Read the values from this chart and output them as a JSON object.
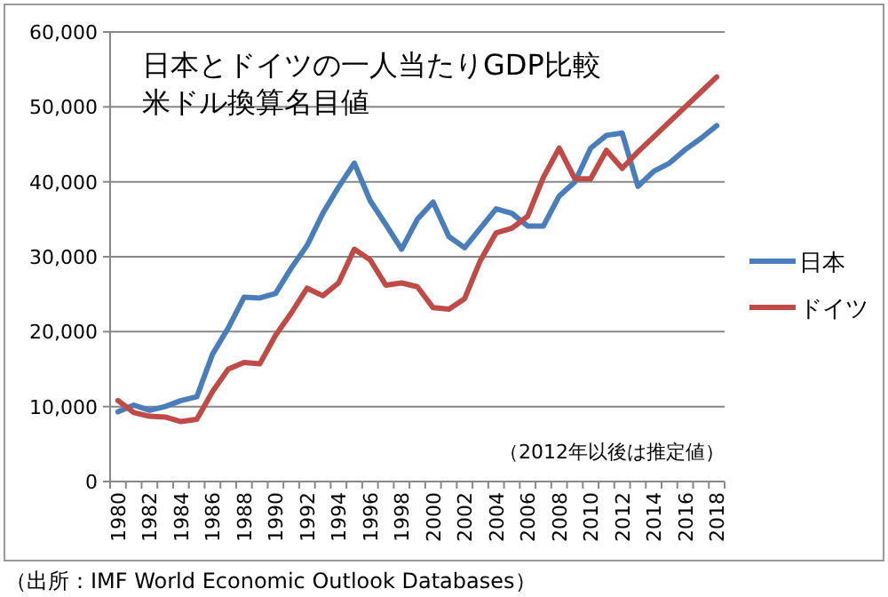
{
  "chart_data": {
    "type": "line",
    "title": "日本とドイツの一人当たりGDP比較",
    "subtitle": "米ドル換算名目値",
    "categories": [
      "1980",
      null,
      "1982",
      null,
      "1984",
      null,
      "1986",
      null,
      "1988",
      null,
      "1990",
      null,
      "1992",
      null,
      "1994",
      null,
      "1996",
      null,
      "1998",
      null,
      "2000",
      null,
      "2002",
      null,
      "2004",
      null,
      "2006",
      null,
      "2008",
      null,
      "2010",
      null,
      "2012",
      null,
      "2014",
      null,
      "2016",
      null,
      "2018"
    ],
    "series": [
      {
        "name": "日本",
        "color": "#4a7ebb",
        "values": [
          9300,
          10200,
          9500,
          10000,
          10800,
          11300,
          17000,
          20500,
          24600,
          24500,
          25100,
          28500,
          31500,
          35800,
          39300,
          42500,
          37500,
          34300,
          31000,
          35000,
          37300,
          32700,
          31200,
          33800,
          36400,
          35800,
          34100,
          34100,
          38100,
          40000,
          44500,
          46200,
          46500,
          39400,
          41400,
          42500,
          44300,
          45800,
          47500
        ]
      },
      {
        "name": "ドイツ",
        "color": "#be4b48",
        "values": [
          10800,
          9200,
          8700,
          8600,
          8000,
          8300,
          12000,
          15000,
          15900,
          15700,
          19500,
          22500,
          25800,
          24800,
          26500,
          31000,
          29600,
          26200,
          26500,
          26000,
          23200,
          23000,
          24400,
          29500,
          33200,
          33800,
          35400,
          40600,
          44500,
          40400,
          40400,
          44200,
          41800,
          44000,
          46000,
          48000,
          50000,
          52000,
          54000
        ]
      }
    ],
    "ylim": [
      0,
      60000
    ],
    "yticks": [
      {
        "value": 0,
        "label": "0"
      },
      {
        "value": 10000,
        "label": "10,000"
      },
      {
        "value": 20000,
        "label": "20,000"
      },
      {
        "value": 30000,
        "label": "30,000"
      },
      {
        "value": 40000,
        "label": "40,000"
      },
      {
        "value": 50000,
        "label": "50,000"
      },
      {
        "value": 60000,
        "label": "60,000"
      }
    ],
    "grid": "y",
    "legend": "right",
    "marker": "none",
    "line_style": "solid",
    "annotations": [
      "（2012年以後は推定値）",
      "（出所：IMF World Economic Outlook Databases）"
    ]
  }
}
